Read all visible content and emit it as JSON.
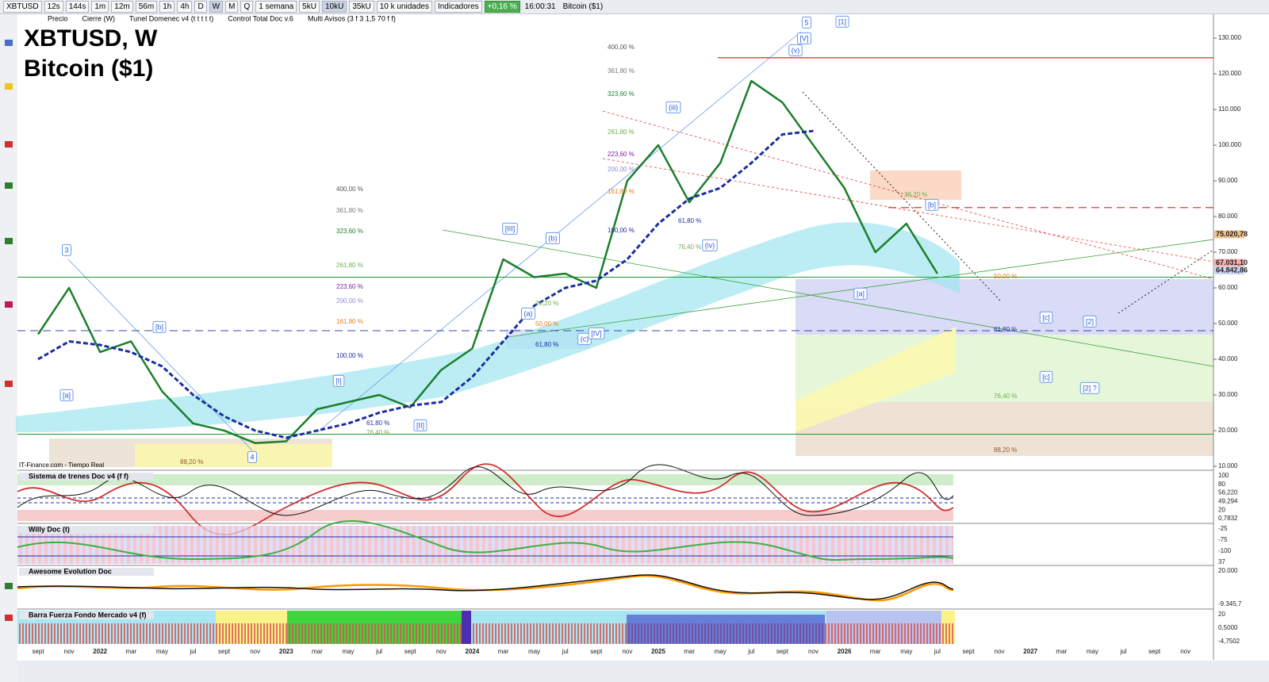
{
  "toolbar": {
    "symbol": "XBTUSD",
    "buttons": [
      "12s",
      "144s",
      "1m",
      "12m",
      "56m",
      "1h",
      "4h",
      "D",
      "W",
      "M",
      "Q"
    ],
    "period": "1 semana",
    "units": [
      "5kU",
      "10kU",
      "35kU"
    ],
    "unit_select": "10 k unidades",
    "indicators": "Indicadores",
    "change": "+0,16 %",
    "time": "16:00:31",
    "name": "Bitcoin ($1)"
  },
  "legend_bar": [
    "Precio",
    "Cierre (W)",
    "Tunel Domenec v4 (t t t t t)",
    "Control Total Doc v.6",
    "Multi Avisos (3 f 3 1,5 70 f f)"
  ],
  "chart_data": {
    "type": "line",
    "title": "XBTUSD, W",
    "subtitle": "Bitcoin ($1)",
    "source": "IT-Finance.com - Tiempo Real",
    "categories": [
      "sept",
      "nov",
      "2022",
      "mar",
      "may",
      "jul",
      "sept",
      "nov",
      "2023",
      "mar",
      "may",
      "jul",
      "sept",
      "nov",
      "2024",
      "mar",
      "may",
      "jul",
      "sept",
      "nov",
      "2025",
      "mar",
      "may",
      "jul",
      "sept",
      "nov",
      "2026",
      "mar",
      "may",
      "jul",
      "sept",
      "nov",
      "2027",
      "mar",
      "may",
      "jul",
      "sept",
      "nov"
    ],
    "series": [
      {
        "name": "Precio",
        "color": "#1b7f2a",
        "values": [
          47000,
          60000,
          42000,
          45000,
          31000,
          22000,
          20000,
          16500,
          17000,
          26000,
          28000,
          30000,
          26500,
          37000,
          43000,
          68000,
          63000,
          64000,
          60000,
          90000,
          100000,
          84000,
          95000,
          118000,
          112000,
          100000,
          88000,
          70000,
          78000,
          64000,
          null,
          null,
          null,
          null,
          null,
          null,
          null,
          null
        ]
      },
      {
        "name": "Cierre (W)",
        "color": "#1a2fa0",
        "dash": true,
        "values": [
          40000,
          45000,
          44000,
          42000,
          38000,
          30000,
          24000,
          20000,
          18000,
          20000,
          22000,
          25000,
          27000,
          28000,
          35000,
          45000,
          55000,
          60000,
          62000,
          68000,
          78000,
          85000,
          88000,
          95000,
          103000,
          104000,
          null,
          null,
          null,
          null,
          null,
          null,
          null,
          null,
          null,
          null,
          null,
          null
        ]
      }
    ],
    "ylim": [
      9100,
      135800
    ],
    "yticks": [
      {
        "value": 10000,
        "label": "10.000"
      },
      {
        "value": 20000,
        "label": "20.000"
      },
      {
        "value": 30000,
        "label": "30.000"
      },
      {
        "value": 40000,
        "label": "40.000"
      },
      {
        "value": 50000,
        "label": "50.000"
      },
      {
        "value": 60000,
        "label": "60.000"
      },
      {
        "value": 70000,
        "label": "70.000"
      },
      {
        "value": 80000,
        "label": "80.000"
      },
      {
        "value": 90000,
        "label": "90.000"
      },
      {
        "value": 100000,
        "label": "100.000"
      },
      {
        "value": 110000,
        "label": "110.000"
      },
      {
        "value": 120000,
        "label": "120.000"
      },
      {
        "value": 130000,
        "label": "130.000"
      }
    ],
    "levels": [
      {
        "value": 124500,
        "color": "#e53935",
        "dash": false
      },
      {
        "value": 82500,
        "color": "#e53935",
        "dash": true
      },
      {
        "value": 63000,
        "color": "#1b9a2a",
        "dash": false
      },
      {
        "value": 19000,
        "color": "#1b9a2a",
        "dash": false
      },
      {
        "value": 48000,
        "color": "#3949ab",
        "dash": true
      }
    ],
    "price_tags": [
      {
        "value": 75020.78,
        "label": "75.020,78",
        "color": "#f2c48d"
      },
      {
        "value": 67031.1,
        "label": "67.031,10",
        "color": "#f6b0b0"
      },
      {
        "value": 64842.86,
        "label": "64.842,86",
        "color": "#cfd8f3"
      }
    ],
    "wave_labels": [
      "3",
      "[a]",
      "[b]",
      "4",
      "[I]",
      "[II]",
      "[III]",
      "(a)",
      "(b)",
      "(c)",
      "[IV]",
      "(iii)",
      "(iv)",
      "(v)",
      "[V]",
      "5",
      "[1]",
      "[a]",
      "[b]",
      "[c]",
      "[2]",
      "[c]",
      "[2] ?"
    ],
    "fib_labels": [
      "400,00 %",
      "361,80 %",
      "323,60 %",
      "261,80 %",
      "223,60 %",
      "200,00 %",
      "161,80 %",
      "100,00 %",
      "400,00 %",
      "361,80 %",
      "323,60 %",
      "261,80 %",
      "223,60 %",
      "200,00 %",
      "161,80 %",
      "100,00 %",
      "88,20 %",
      "61,80 %",
      "76,40 %",
      "38,20 %",
      "50,00 %",
      "61,80 %",
      "61,80 %",
      "76,40 %",
      "50,00 %",
      "61,80 %",
      "76,40 %",
      "88,20 %",
      "38,20 %"
    ]
  },
  "panels": [
    {
      "title": "Sistema de trenes Doc v4 (f f)",
      "axis_labels": [
        "100",
        "80",
        "56,220",
        "49,294",
        "20",
        "0,7832"
      ]
    },
    {
      "title": "Willy Doc (t)",
      "axis_labels": [
        "-25",
        "-75",
        "-100",
        "37"
      ]
    },
    {
      "title": "Awesome Evolution Doc",
      "axis_labels": [
        "20.000",
        "-9.345,7"
      ]
    },
    {
      "title": "Barra Fuerza Fondo Mercado v4 (f)",
      "axis_labels": [
        "20",
        "0,5000",
        "-4,7502"
      ]
    }
  ]
}
